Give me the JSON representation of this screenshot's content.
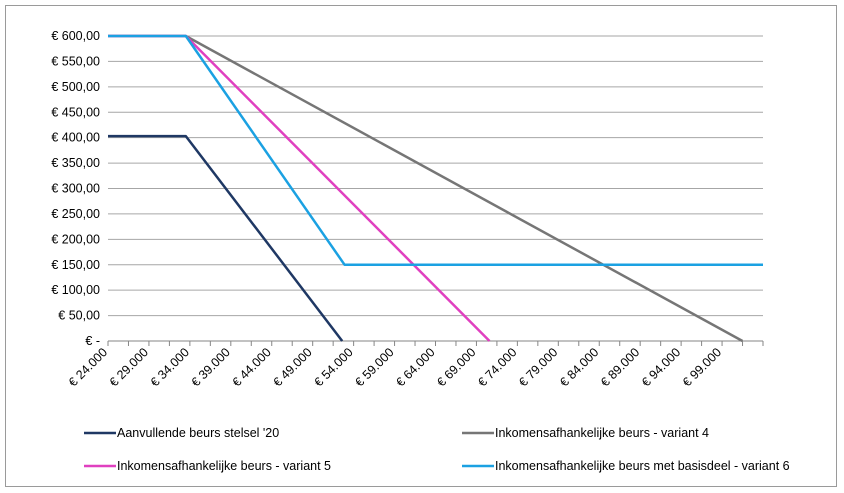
{
  "chart_data": {
    "type": "line",
    "title": "",
    "xlabel": "",
    "ylabel": "",
    "ylim": [
      0,
      600
    ],
    "xlim": [
      24000,
      104000
    ],
    "grid": "horizontal",
    "legend_position": "bottom",
    "y_ticks": [
      {
        "value": 600,
        "label": "€ 600,00"
      },
      {
        "value": 550,
        "label": "€ 550,00"
      },
      {
        "value": 500,
        "label": "€ 500,00"
      },
      {
        "value": 450,
        "label": "€ 450,00"
      },
      {
        "value": 400,
        "label": "€ 400,00"
      },
      {
        "value": 350,
        "label": "€ 350,00"
      },
      {
        "value": 300,
        "label": "€ 300,00"
      },
      {
        "value": 250,
        "label": "€ 250,00"
      },
      {
        "value": 200,
        "label": "€ 200,00"
      },
      {
        "value": 150,
        "label": "€ 150,00"
      },
      {
        "value": 100,
        "label": "€ 100,00"
      },
      {
        "value": 50,
        "label": "€ 50,00"
      },
      {
        "value": 0,
        "label": "€ -"
      }
    ],
    "x_ticks": [
      {
        "value": 24000,
        "label": "€ 24.000"
      },
      {
        "value": 29000,
        "label": "€ 29.000"
      },
      {
        "value": 34000,
        "label": "€ 34.000"
      },
      {
        "value": 39000,
        "label": "€ 39.000"
      },
      {
        "value": 44000,
        "label": "€ 44.000"
      },
      {
        "value": 49000,
        "label": "€ 49.000"
      },
      {
        "value": 54000,
        "label": "€ 54.000"
      },
      {
        "value": 59000,
        "label": "€ 59.000"
      },
      {
        "value": 64000,
        "label": "€ 64.000"
      },
      {
        "value": 69000,
        "label": "€ 69.000"
      },
      {
        "value": 74000,
        "label": "€ 74.000"
      },
      {
        "value": 79000,
        "label": "€ 79.000"
      },
      {
        "value": 84000,
        "label": "€ 84.000"
      },
      {
        "value": 89000,
        "label": "€ 89.000"
      },
      {
        "value": 94000,
        "label": "€ 94.000"
      },
      {
        "value": 99000,
        "label": "€ 99.000"
      }
    ],
    "series": [
      {
        "name": "Aanvullende beurs stelsel '20",
        "color": "#1f3864",
        "points": [
          [
            24000,
            403
          ],
          [
            33500,
            403
          ],
          [
            52600,
            0
          ]
        ]
      },
      {
        "name": "Inkomensafhankelijke beurs - variant 4",
        "color": "#767676",
        "points": [
          [
            24000,
            600
          ],
          [
            33500,
            600
          ],
          [
            101500,
            0
          ]
        ]
      },
      {
        "name": "Inkomensafhankelijke beurs - variant 5",
        "color": "#e040c0",
        "points": [
          [
            24000,
            600
          ],
          [
            33500,
            600
          ],
          [
            70600,
            0
          ]
        ]
      },
      {
        "name": "Inkomensafhankelijke beurs met basisdeel - variant 6",
        "color": "#1ba1e2",
        "points": [
          [
            24000,
            600
          ],
          [
            33500,
            600
          ],
          [
            52900,
            150
          ],
          [
            104000,
            150
          ]
        ]
      }
    ]
  }
}
